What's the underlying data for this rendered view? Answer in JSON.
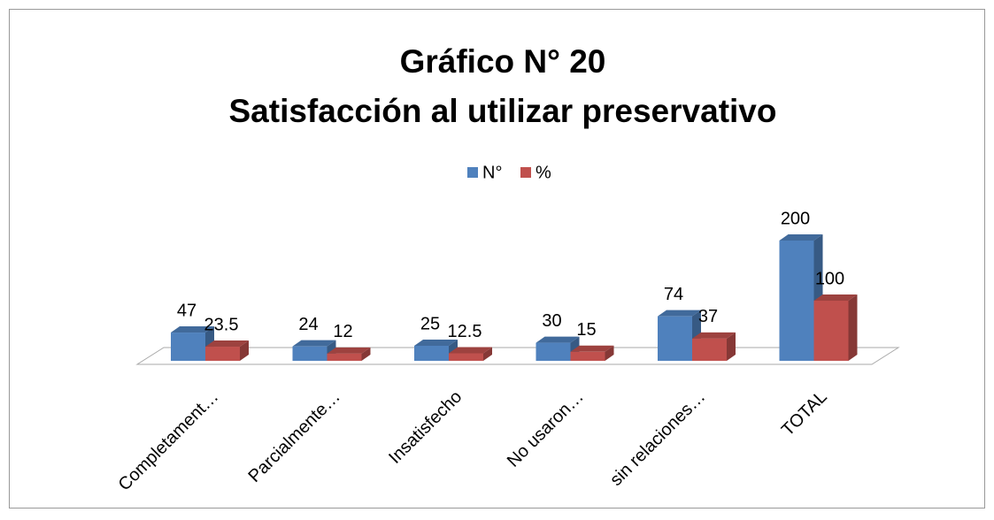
{
  "chart_data": {
    "type": "bar3d",
    "title": [
      "Gráfico N° 20",
      "Satisfacción al utilizar preservativo"
    ],
    "categories": [
      "Completament…",
      "Parcialmente…",
      "Insatisfecho",
      "No usaron…",
      "sin relaciones…",
      "TOTAL"
    ],
    "series": [
      {
        "name": "N°",
        "color": "#4f81bd",
        "values": [
          47,
          24,
          25,
          30,
          74,
          200
        ]
      },
      {
        "name": "%",
        "color": "#c0504d",
        "values": [
          23.5,
          12,
          12.5,
          15,
          37,
          100
        ]
      }
    ],
    "ylim": [
      0,
      200
    ],
    "legend": "top"
  }
}
